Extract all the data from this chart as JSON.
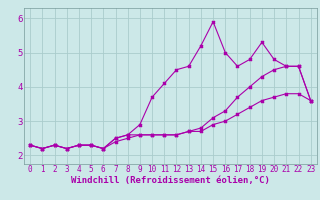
{
  "background_color": "#cce8e8",
  "line_color": "#aa00aa",
  "grid_color": "#aacccc",
  "xlim": [
    -0.5,
    23.5
  ],
  "ylim": [
    1.75,
    6.3
  ],
  "xticks": [
    0,
    1,
    2,
    3,
    4,
    5,
    6,
    7,
    8,
    9,
    10,
    11,
    12,
    13,
    14,
    15,
    16,
    17,
    18,
    19,
    20,
    21,
    22,
    23
  ],
  "yticks": [
    2,
    3,
    4,
    5,
    6
  ],
  "xlabel": "Windchill (Refroidissement éolien,°C)",
  "series1": [
    2.3,
    2.2,
    2.3,
    2.2,
    2.3,
    2.3,
    2.2,
    2.5,
    2.6,
    2.9,
    3.7,
    4.1,
    4.5,
    4.6,
    5.2,
    5.9,
    5.0,
    4.6,
    4.8,
    5.3,
    4.8,
    4.6,
    4.6,
    3.6
  ],
  "series2": [
    2.3,
    2.2,
    2.3,
    2.2,
    2.3,
    2.3,
    2.2,
    2.5,
    2.6,
    2.6,
    2.6,
    2.6,
    2.6,
    2.7,
    2.8,
    3.1,
    3.3,
    3.7,
    4.0,
    4.3,
    4.5,
    4.6,
    4.6,
    3.6
  ],
  "series3": [
    2.3,
    2.2,
    2.3,
    2.2,
    2.3,
    2.3,
    2.2,
    2.4,
    2.5,
    2.6,
    2.6,
    2.6,
    2.6,
    2.7,
    2.7,
    2.9,
    3.0,
    3.2,
    3.4,
    3.6,
    3.7,
    3.8,
    3.8,
    3.6
  ],
  "markersize": 2.5,
  "linewidth": 0.8,
  "tick_fontsize": 5.5,
  "label_fontsize": 6.5
}
